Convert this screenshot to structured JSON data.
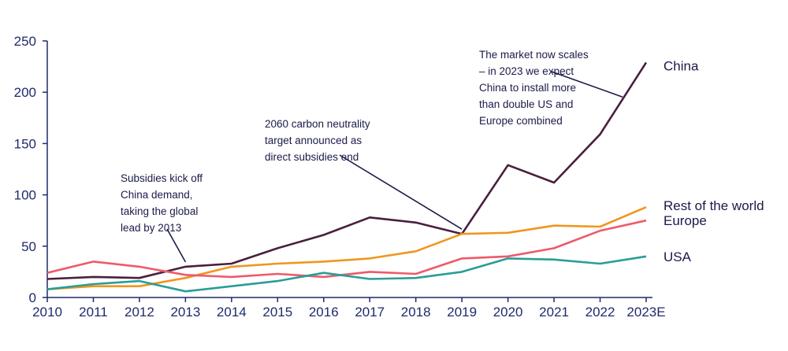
{
  "chart_data": {
    "type": "line",
    "categories": [
      "2010",
      "2011",
      "2012",
      "2013",
      "2014",
      "2015",
      "2016",
      "2017",
      "2018",
      "2019",
      "2020",
      "2021",
      "2022",
      "2023E"
    ],
    "ylim": [
      0,
      250
    ],
    "yticks": [
      0,
      50,
      100,
      150,
      200,
      250
    ],
    "grid": false,
    "legend": "end-of-line labels",
    "series": [
      {
        "name": "China",
        "color": "#4a1f3d",
        "values": [
          18,
          20,
          19,
          30,
          33,
          48,
          61,
          78,
          73,
          62,
          129,
          112,
          159,
          229
        ]
      },
      {
        "name": "Rest of the world",
        "color": "#f0961e",
        "values": [
          8,
          11,
          11,
          19,
          30,
          33,
          35,
          38,
          45,
          62,
          63,
          70,
          69,
          88
        ]
      },
      {
        "name": "Europe",
        "color": "#ee5a6a",
        "values": [
          24,
          35,
          30,
          22,
          20,
          23,
          20,
          25,
          23,
          38,
          40,
          48,
          65,
          75
        ]
      },
      {
        "name": "USA",
        "color": "#2a9d98",
        "values": [
          8,
          13,
          16,
          6,
          11,
          16,
          24,
          18,
          19,
          25,
          38,
          37,
          33,
          40
        ]
      }
    ],
    "annotations": [
      {
        "lines": [
          "Subsidies kick off",
          "China demand,",
          "taking the global",
          "lead by 2013"
        ],
        "target": [
          "2013",
          30
        ]
      },
      {
        "lines": [
          "2060 carbon neutrality",
          "target announced as",
          "direct subsidies end"
        ],
        "target": [
          "2019",
          62
        ]
      },
      {
        "lines": [
          "The market now scales",
          "– in 2023 we expect",
          "China to install more",
          "than double US and",
          "Europe combined"
        ],
        "target": [
          "2023E",
          200
        ]
      }
    ]
  }
}
